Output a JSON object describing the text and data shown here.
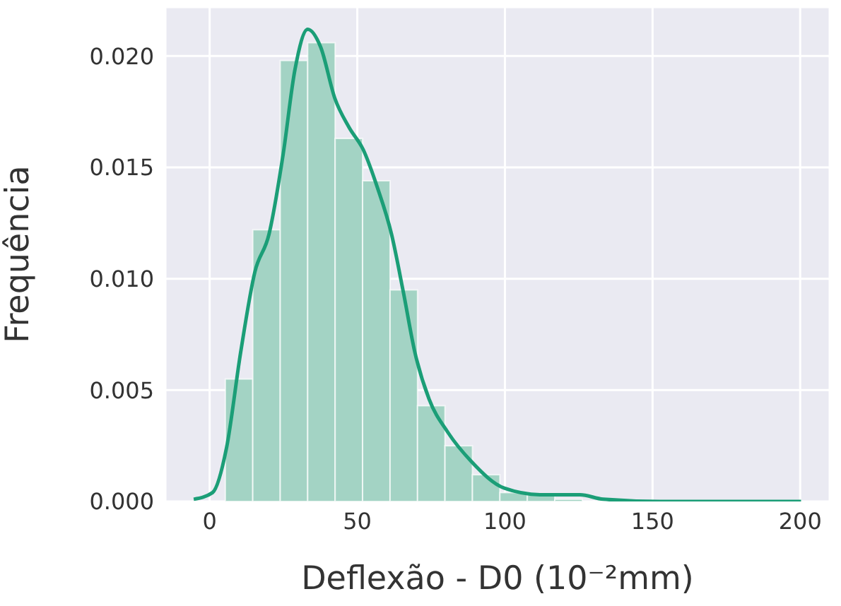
{
  "chart_data": {
    "type": "histogram",
    "xlabel": "Deflexão - D0 (10⁻²mm)",
    "ylabel": "Frequência",
    "bins": [
      5.3,
      14.6,
      23.9,
      33.2,
      42.5,
      51.8,
      61.1,
      70.4,
      79.7,
      89,
      98.3,
      107.6,
      116.9,
      126.2
    ],
    "values": [
      0.0055,
      0.0122,
      0.0198,
      0.0206,
      0.0163,
      0.0144,
      0.0095,
      0.0043,
      0.0025,
      0.0012,
      0.0004,
      0.0003,
      0.0001
    ],
    "color": "#a3d3c4",
    "series": [
      {
        "type": "line",
        "color": "#1b9e77",
        "x": [
          -5.4,
          1,
          5.7,
          10.5,
          15.3,
          20.1,
          24.9,
          28.9,
          33.2,
          37.6,
          42.4,
          47.2,
          52,
          56.8,
          61.6,
          65.6,
          69.5,
          74.3,
          80.7,
          88.6,
          99.8,
          112.6,
          125.4,
          133.3,
          152.4,
          200.3
        ],
        "values": [
          0.0001,
          0.0004,
          0.0024,
          0.0067,
          0.0103,
          0.012,
          0.0156,
          0.0194,
          0.0212,
          0.0204,
          0.0181,
          0.0168,
          0.0158,
          0.0141,
          0.012,
          0.0094,
          0.0067,
          0.0046,
          0.0031,
          0.0018,
          0.0006,
          0.0003,
          0.0003,
          0.0001,
          0,
          0
        ]
      }
    ],
    "xlim": [
      -15,
      210
    ],
    "ylim": [
      0,
      0.0222
    ],
    "xticks": [
      0,
      50,
      100,
      150,
      200
    ],
    "yticks": [
      {
        "value": 0,
        "label": "0.000"
      },
      {
        "value": 0.005,
        "label": "0.005"
      },
      {
        "value": 0.01,
        "label": "0.010"
      },
      {
        "value": 0.015,
        "label": "0.015"
      },
      {
        "value": 0.02,
        "label": "0.020"
      }
    ],
    "grid": true
  }
}
